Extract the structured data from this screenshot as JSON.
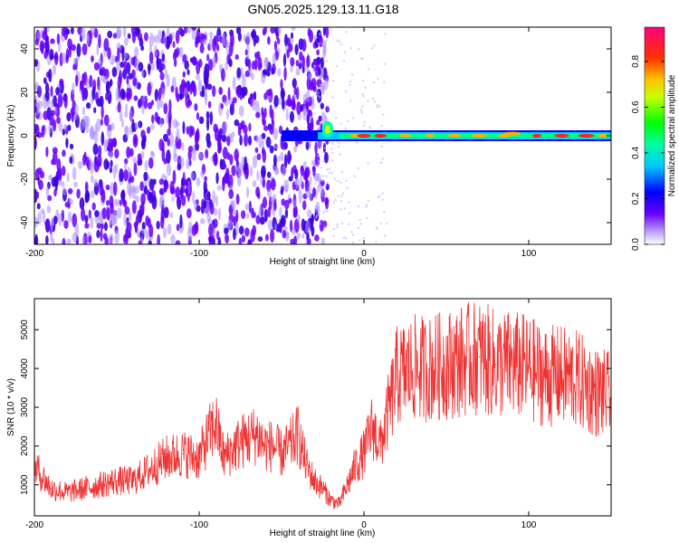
{
  "title": "GN05.2025.129.13.11.G18",
  "chart_data": [
    {
      "type": "heatmap",
      "xlabel": "Height of straight line (km)",
      "ylabel": "Frequency (Hz)",
      "xlim": [
        -200,
        150
      ],
      "ylim": [
        -50,
        50
      ],
      "xticks": [
        "-200",
        "-100",
        "0",
        "100"
      ],
      "xtick_values": [
        -200,
        -100,
        0,
        100
      ],
      "yticks": [
        "40",
        "20",
        "0",
        "-20",
        "-40"
      ],
      "ytick_values": [
        40,
        20,
        0,
        -20,
        -40
      ],
      "colorbar": {
        "label": "Normalized spectral amplitude",
        "ticks": [
          "0.8",
          "0.6",
          "0.4",
          "0.2",
          "0.0"
        ],
        "tick_values": [
          0.8,
          0.6,
          0.4,
          0.2,
          0.0
        ],
        "range": [
          0,
          0.95
        ],
        "colormap": [
          "#ffffff",
          "#6a00ff",
          "#0000ff",
          "#00ffff",
          "#00ff00",
          "#ffff00",
          "#ff8000",
          "#ff0000",
          "#ff0080"
        ]
      },
      "description_free_note": ""
    },
    {
      "type": "line",
      "xlabel": "Height of straight line (km)",
      "ylabel": "SNR (10 * v/v)",
      "xlim": [
        -200,
        150
      ],
      "ylim": [
        200,
        5800
      ],
      "xticks": [
        "-200",
        "-100",
        "0",
        "100"
      ],
      "xtick_values": [
        -200,
        -100,
        0,
        100
      ],
      "yticks": [
        "5000",
        "4000",
        "3000",
        "2000",
        "1000"
      ],
      "ytick_values": [
        5000,
        4000,
        3000,
        2000,
        1000
      ],
      "color": "#ee3333",
      "series": [
        {
          "x": [
            -200,
            -190,
            -180,
            -170,
            -160,
            -150,
            -140,
            -130,
            -120,
            -110,
            -100,
            -95,
            -90,
            -85,
            -80,
            -75,
            -70,
            -65,
            -60,
            -55,
            -50,
            -45,
            -40,
            -35,
            -30,
            -25,
            -20,
            -15,
            -10,
            -5,
            0,
            5,
            10,
            15,
            20,
            25,
            30,
            40,
            50,
            60,
            70,
            80,
            90,
            100,
            110,
            120,
            130,
            140,
            150
          ],
          "y": [
            1500,
            900,
            800,
            900,
            1000,
            1100,
            1100,
            1400,
            1700,
            1800,
            1700,
            2200,
            2600,
            1700,
            1900,
            2100,
            2200,
            2300,
            2000,
            2000,
            1800,
            2000,
            2300,
            1500,
            1100,
            900,
            600,
            500,
            1000,
            1500,
            1800,
            2500,
            2000,
            2900,
            3800,
            3900,
            4000,
            4000,
            4100,
            4200,
            4300,
            4100,
            4100,
            4000,
            3800,
            3800,
            3700,
            3400,
            3300
          ]
        }
      ]
    }
  ]
}
